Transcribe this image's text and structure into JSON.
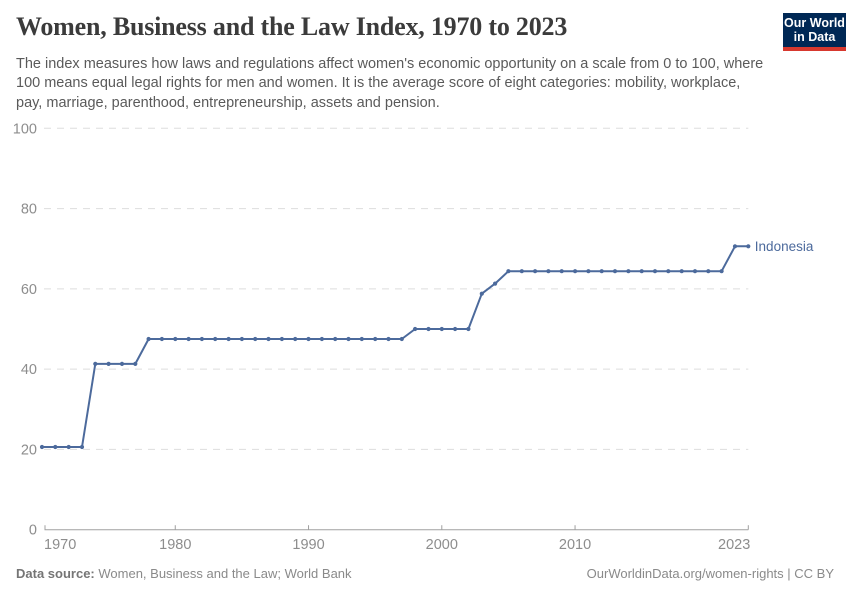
{
  "header": {
    "title": "Women, Business and the Law Index, 1970 to 2023",
    "subtitle": "The index measures how laws and regulations affect women's economic opportunity on a scale from 0 to 100, where 100 means equal legal rights for men and women. It is the average score of eight categories: mobility, workplace, pay, marriage, parenthood, entrepreneurship, assets and pension.",
    "logo": {
      "line1": "Our World",
      "line2": "in Data"
    }
  },
  "chart_data": {
    "type": "line",
    "title": "Women, Business and the Law Index, 1970 to 2023",
    "xlabel": "",
    "ylabel": "",
    "xlim": [
      1970,
      2023
    ],
    "ylim": [
      0,
      100
    ],
    "yticks": [
      0,
      20,
      40,
      60,
      80,
      100
    ],
    "xticks": [
      1970,
      1980,
      1990,
      2000,
      2010,
      2023
    ],
    "grid": "horizontal-dashed",
    "legend": "line-end-label",
    "x": [
      1970,
      1971,
      1972,
      1973,
      1974,
      1975,
      1976,
      1977,
      1978,
      1979,
      1980,
      1981,
      1982,
      1983,
      1984,
      1985,
      1986,
      1987,
      1988,
      1989,
      1990,
      1991,
      1992,
      1993,
      1994,
      1995,
      1996,
      1997,
      1998,
      1999,
      2000,
      2001,
      2002,
      2003,
      2004,
      2005,
      2006,
      2007,
      2008,
      2009,
      2010,
      2011,
      2012,
      2013,
      2014,
      2015,
      2016,
      2017,
      2018,
      2019,
      2020,
      2021,
      2022,
      2023
    ],
    "series": [
      {
        "name": "Indonesia",
        "color": "#4C6A9C",
        "values": [
          20.6,
          20.6,
          20.6,
          20.6,
          41.3,
          41.3,
          41.3,
          41.3,
          47.5,
          47.5,
          47.5,
          47.5,
          47.5,
          47.5,
          47.5,
          47.5,
          47.5,
          47.5,
          47.5,
          47.5,
          47.5,
          47.5,
          47.5,
          47.5,
          47.5,
          47.5,
          47.5,
          47.5,
          50,
          50,
          50,
          50,
          50,
          58.8,
          61.3,
          64.4,
          64.4,
          64.4,
          64.4,
          64.4,
          64.4,
          64.4,
          64.4,
          64.4,
          64.4,
          64.4,
          64.4,
          64.4,
          64.4,
          64.4,
          64.4,
          64.4,
          70.6,
          70.6
        ]
      }
    ]
  },
  "colors": {
    "line": "#4C6A9C",
    "grid": "#dddddd",
    "axis": "#a0a0a0",
    "tick_label": "#8d8d8d",
    "logo_bg": "#002855",
    "logo_stripe": "#d7382e"
  },
  "footer": {
    "source_label": "Data source:",
    "source_value": "Women, Business and the Law; World Bank",
    "note": "OurWorldinData.org/women-rights | CC BY"
  }
}
